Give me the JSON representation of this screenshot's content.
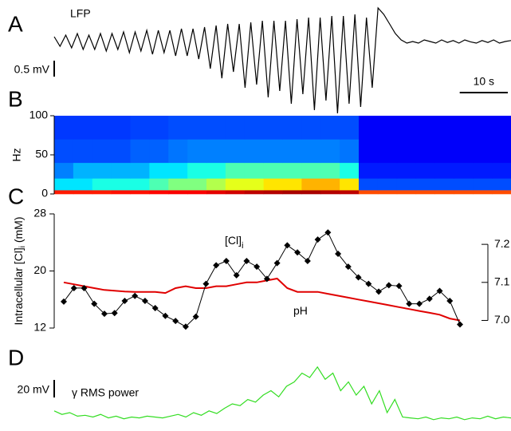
{
  "chart_data": [
    {
      "type": "trace",
      "panel": "A",
      "label": "LFP",
      "color": "#000000",
      "values": [
        0.1,
        -0.2,
        0.15,
        -0.25,
        0.2,
        -0.3,
        0.15,
        -0.3,
        0.2,
        -0.35,
        0.2,
        -0.3,
        0.25,
        -0.4,
        0.25,
        -0.35,
        0.3,
        -0.45,
        0.3,
        -0.4,
        0.3,
        -0.5,
        0.35,
        -0.5,
        0.35,
        -0.6,
        0.4,
        -0.9,
        0.45,
        -1.2,
        0.5,
        -1.0,
        0.5,
        -1.5,
        0.55,
        -1.4,
        0.6,
        -1.8,
        0.6,
        -1.6,
        0.6,
        -2.0,
        0.65,
        -1.7,
        0.7,
        -2.2,
        0.7,
        -1.9,
        0.75,
        -2.3,
        0.75,
        -2.0,
        0.8,
        -2.1,
        0.7,
        -1.5,
        1.0,
        0.8,
        0.5,
        0.2,
        0.0,
        -0.1,
        -0.05,
        -0.1,
        0.0,
        -0.05,
        -0.1,
        0.0,
        -0.08,
        -0.02,
        -0.1,
        0.0,
        -0.06,
        -0.1,
        -0.02,
        -0.08,
        0.0,
        -0.1,
        -0.05,
        -0.02
      ],
      "x_duration": 95,
      "scale_bar": {
        "value": 0.5,
        "label": "0.5 mV"
      },
      "time_bar": {
        "value": 10,
        "label": "10 s"
      }
    },
    {
      "type": "heatmap",
      "panel": "B",
      "ylabel": "Hz",
      "colormap": "jet",
      "ylim": [
        0,
        100
      ],
      "yticks": [
        0,
        50,
        100
      ],
      "freq_edges": [
        0,
        5,
        20,
        40,
        70,
        100
      ],
      "values": [
        [
          0.85,
          0.85,
          0.85,
          0.86,
          0.86,
          0.87,
          0.88,
          0.88,
          0.9,
          0.92,
          0.94,
          0.95,
          0.96,
          0.96,
          0.95,
          0.94,
          0.8,
          0.8,
          0.8,
          0.8,
          0.8,
          0.8,
          0.8,
          0.8
        ],
        [
          0.35,
          0.35,
          0.4,
          0.4,
          0.4,
          0.45,
          0.5,
          0.5,
          0.55,
          0.6,
          0.6,
          0.65,
          0.65,
          0.7,
          0.7,
          0.65,
          0.2,
          0.2,
          0.2,
          0.2,
          0.2,
          0.2,
          0.2,
          0.2
        ],
        [
          0.25,
          0.3,
          0.3,
          0.3,
          0.3,
          0.35,
          0.35,
          0.4,
          0.4,
          0.45,
          0.45,
          0.45,
          0.45,
          0.45,
          0.45,
          0.4,
          0.15,
          0.15,
          0.15,
          0.15,
          0.15,
          0.15,
          0.15,
          0.15
        ],
        [
          0.2,
          0.2,
          0.2,
          0.2,
          0.22,
          0.22,
          0.24,
          0.25,
          0.25,
          0.25,
          0.25,
          0.25,
          0.25,
          0.25,
          0.25,
          0.24,
          0.12,
          0.12,
          0.12,
          0.12,
          0.12,
          0.12,
          0.12,
          0.12
        ],
        [
          0.18,
          0.18,
          0.18,
          0.18,
          0.19,
          0.19,
          0.2,
          0.2,
          0.2,
          0.2,
          0.2,
          0.2,
          0.2,
          0.2,
          0.2,
          0.2,
          0.12,
          0.12,
          0.12,
          0.12,
          0.12,
          0.12,
          0.12,
          0.12
        ]
      ]
    },
    {
      "type": "line",
      "panel": "C",
      "ylabel": {
        "text": "Intracellular [Cl]",
        "subscript": "i",
        "suffix": " (mM)"
      },
      "ylim": [
        12,
        28
      ],
      "yticks": [
        12,
        20,
        28
      ],
      "y2lim": [
        6.98,
        7.28
      ],
      "y2ticks": [
        {
          "value": 7.0,
          "label": "7.0"
        },
        7.1,
        7.2
      ],
      "series": [
        {
          "name": "[Cl]",
          "name_subscript": "i",
          "color": "#000000",
          "marker": "diamond",
          "values": [
            15.7,
            17.6,
            17.6,
            15.4,
            14.0,
            14.1,
            15.8,
            16.5,
            15.8,
            14.8,
            13.7,
            13.0,
            12.2,
            13.6,
            18.2,
            20.8,
            21.4,
            19.4,
            21.4,
            20.6,
            18.9,
            21.1,
            23.6,
            22.6,
            21.4,
            24.4,
            25.4,
            22.4,
            20.6,
            19.1,
            18.2,
            17.1,
            18.0,
            17.9,
            15.4,
            15.4,
            16.1,
            17.2,
            15.8,
            12.5
          ]
        },
        {
          "name": "pH",
          "color": "#e00000",
          "axis": "y2",
          "values": [
            7.1,
            7.095,
            7.09,
            7.085,
            7.08,
            7.078,
            7.076,
            7.075,
            7.075,
            7.075,
            7.072,
            7.085,
            7.09,
            7.085,
            7.085,
            7.09,
            7.09,
            7.095,
            7.1,
            7.1,
            7.105,
            7.11,
            7.085,
            7.075,
            7.075,
            7.075,
            7.07,
            7.065,
            7.06,
            7.055,
            7.05,
            7.045,
            7.04,
            7.035,
            7.03,
            7.025,
            7.02,
            7.015,
            7.005,
            7.0
          ]
        }
      ]
    },
    {
      "type": "trace",
      "panel": "D",
      "label": "γ RMS power",
      "color": "#33dd22",
      "values": [
        12,
        8,
        10,
        6,
        7,
        5,
        8,
        4,
        6,
        3,
        5,
        4,
        6,
        5,
        4,
        6,
        8,
        5,
        10,
        7,
        12,
        9,
        15,
        20,
        18,
        25,
        22,
        30,
        35,
        28,
        40,
        45,
        55,
        50,
        62,
        48,
        55,
        35,
        45,
        30,
        40,
        20,
        35,
        10,
        25,
        5,
        4,
        3,
        5,
        2,
        4,
        3,
        5,
        2,
        4,
        3,
        6,
        3,
        5,
        4
      ],
      "scale_bar": {
        "value": 20,
        "label": "20 mV"
      }
    }
  ]
}
